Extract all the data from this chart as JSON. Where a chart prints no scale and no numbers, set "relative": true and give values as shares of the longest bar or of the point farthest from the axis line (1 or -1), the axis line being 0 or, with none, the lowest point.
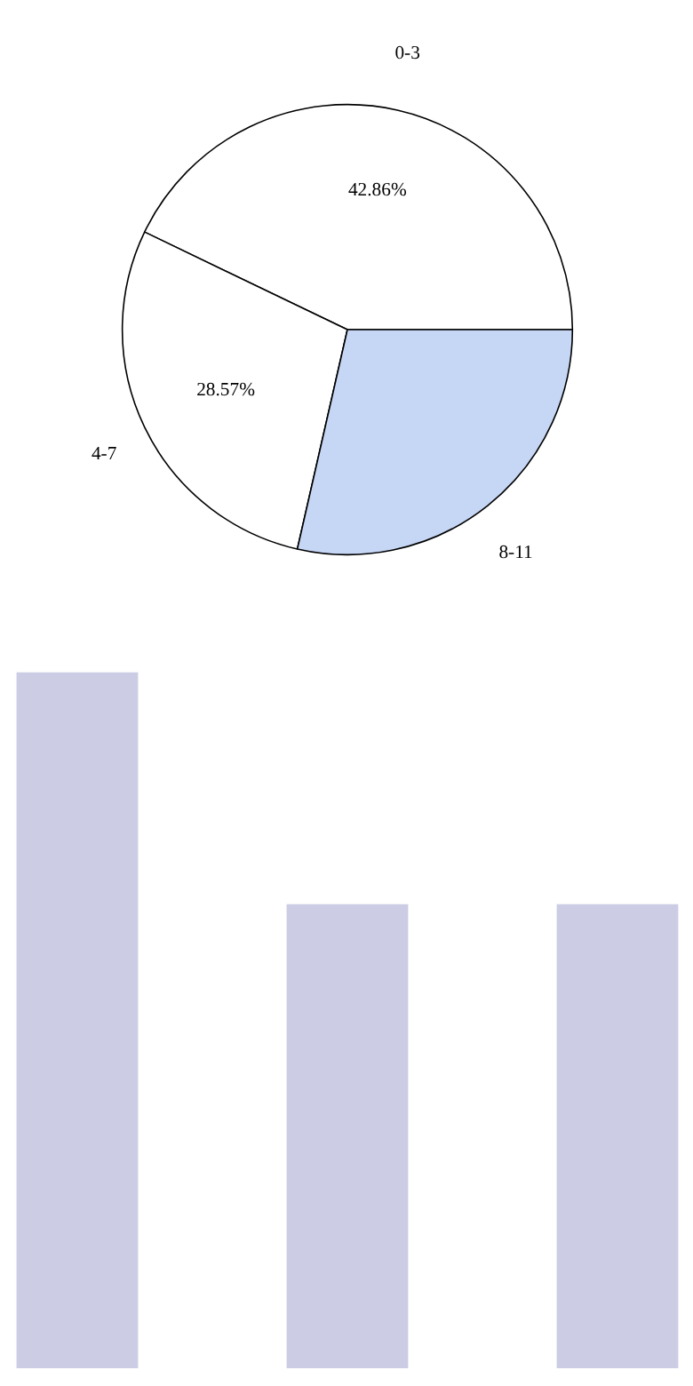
{
  "chart_data": [
    {
      "type": "pie",
      "categories": [
        "0-3",
        "4-7",
        "8-11"
      ],
      "values": [
        42.86,
        28.57,
        28.57
      ],
      "colors": [
        "#ffffff",
        "#ffffff",
        "#c6d6f5"
      ],
      "value_labels": [
        "42.86%",
        "28.57%",
        null
      ]
    },
    {
      "type": "bar",
      "categories": [
        null,
        null,
        null
      ],
      "values": [
        1,
        0.667,
        0.667
      ],
      "color": "#cccce4",
      "relative": true
    }
  ]
}
